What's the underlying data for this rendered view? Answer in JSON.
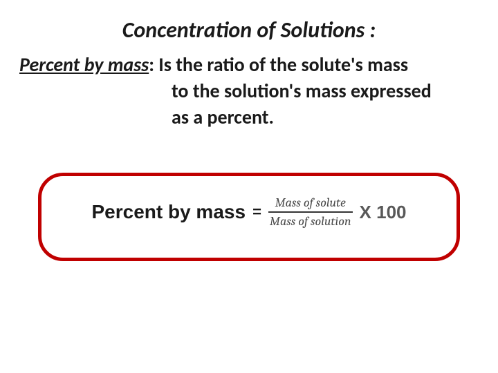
{
  "title": {
    "text": "Concentration of Solutions :",
    "color": "#1a1a1a",
    "fontsize": 32
  },
  "definition": {
    "term": "Percent by mass",
    "line1_tail": ": Is the ratio of the solute's mass",
    "line2": "to the solution's mass expressed",
    "line3": "as a  percent.",
    "color": "#1a1a1a",
    "fontsize": 28
  },
  "formula": {
    "border_color": "#c00000",
    "lhs": "Percent by mass",
    "lhs_color": "#1a1a1a",
    "lhs_fontsize": 28,
    "eq": "=",
    "eq_color": "#1a1a1a",
    "numerator": "Mass of solute",
    "denominator": "Mass of solution",
    "frac_color": "#4a4a4a",
    "frac_line_color": "#333333",
    "frac_fontsize": 18,
    "times": "X 100",
    "times_color": "#595959",
    "times_fontsize": 26,
    "box_bg": "#ffffff"
  },
  "background": "#ffffff"
}
